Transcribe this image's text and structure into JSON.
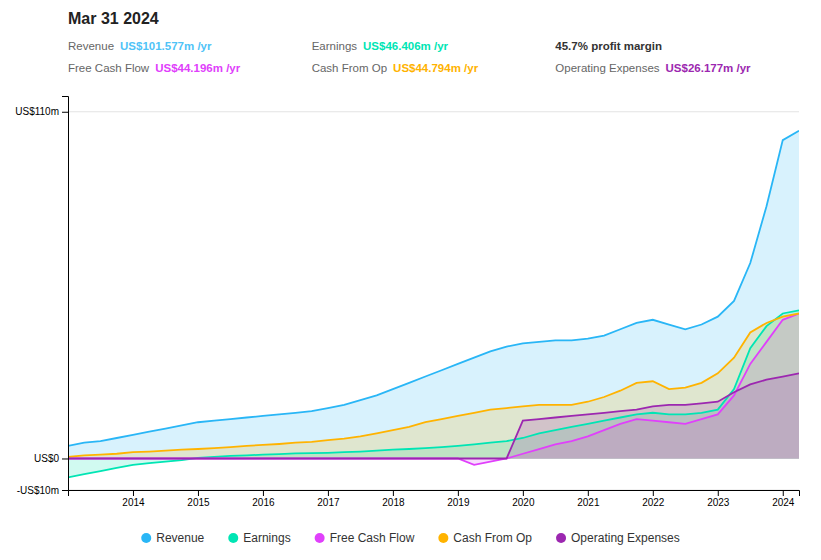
{
  "chart_data": {
    "type": "area",
    "title": "Mar 31 2024",
    "annotations": [
      {
        "label": "Revenue",
        "text": "US$101.577m /yr",
        "color": "#4fc3f7"
      },
      {
        "label": "Earnings",
        "text": "US$46.406m /yr",
        "color": "#00e5b4"
      },
      {
        "text": "45.7% profit margin"
      },
      {
        "label": "Free Cash Flow",
        "text": "US$44.196m /yr",
        "color": "#e040fb"
      },
      {
        "label": "Cash From Op",
        "text": "US$44.794m /yr",
        "color": "#ffb300"
      },
      {
        "label": "Operating Expenses",
        "text": "US$26.177m /yr",
        "color": "#9c27b0"
      }
    ],
    "x": [
      2013.0,
      2013.25,
      2013.5,
      2013.75,
      2014.0,
      2014.25,
      2014.5,
      2014.75,
      2015.0,
      2015.25,
      2015.5,
      2015.75,
      2016.0,
      2016.25,
      2016.5,
      2016.75,
      2017.0,
      2017.25,
      2017.5,
      2017.75,
      2018.0,
      2018.25,
      2018.5,
      2018.75,
      2019.0,
      2019.25,
      2019.5,
      2019.75,
      2020.0,
      2020.25,
      2020.5,
      2020.75,
      2021.0,
      2021.25,
      2021.5,
      2021.75,
      2022.0,
      2022.25,
      2022.5,
      2022.75,
      2023.0,
      2023.25,
      2023.5,
      2023.75,
      2024.0,
      2024.25
    ],
    "xlim": [
      2013.0,
      2024.25
    ],
    "xticks": [
      2014,
      2015,
      2016,
      2017,
      2018,
      2019,
      2020,
      2021,
      2022,
      2023,
      2024
    ],
    "ylim": [
      -10,
      115
    ],
    "yticks": [
      {
        "value": -10,
        "label": "-US$10m"
      },
      {
        "value": 0,
        "label": "US$0"
      },
      {
        "value": 110,
        "label": "US$110m"
      }
    ],
    "grid": true,
    "legend": "bottom",
    "series": [
      {
        "name": "Revenue",
        "color": "#29b6f6",
        "values": [
          4,
          5,
          5.5,
          6.5,
          7.5,
          8.5,
          9.5,
          10.5,
          11.5,
          12,
          12.5,
          13,
          13.5,
          14,
          14.5,
          15,
          16,
          17,
          18.5,
          20,
          22,
          24,
          26,
          28,
          30,
          32,
          34,
          35.5,
          36.5,
          37,
          37.5,
          37.5,
          38,
          39,
          41,
          43,
          44,
          42.5,
          41,
          42.5,
          45,
          50,
          62,
          80,
          101,
          104
        ]
      },
      {
        "name": "Earnings",
        "color": "#00e5b4",
        "values": [
          -6,
          -5,
          -4,
          -3,
          -2,
          -1.5,
          -1,
          -0.5,
          0.2,
          0.5,
          0.8,
          1,
          1.2,
          1.4,
          1.6,
          1.7,
          1.8,
          2,
          2.2,
          2.5,
          2.8,
          3,
          3.3,
          3.6,
          4,
          4.5,
          5,
          5.5,
          6.5,
          8,
          9,
          10,
          11,
          12,
          13,
          14,
          14.5,
          14,
          14,
          14.5,
          15.5,
          22,
          35,
          42,
          46,
          47
        ]
      },
      {
        "name": "Free Cash Flow",
        "color": "#e040fb",
        "values": [
          0,
          0,
          0,
          0,
          0,
          0,
          0,
          0,
          0,
          0,
          0,
          0,
          0,
          0,
          0,
          0,
          0,
          0,
          0,
          0,
          0,
          0,
          0,
          0,
          0,
          -2,
          -1,
          0,
          1.5,
          3,
          4.5,
          5.5,
          7,
          9,
          11,
          12.5,
          12,
          11.5,
          11,
          12.5,
          14,
          20,
          30,
          37,
          44,
          46
        ]
      },
      {
        "name": "Cash From Op",
        "color": "#ffb300",
        "values": [
          0.5,
          1,
          1.2,
          1.5,
          2,
          2.2,
          2.5,
          2.8,
          3,
          3.3,
          3.6,
          4,
          4.3,
          4.6,
          5,
          5.3,
          5.8,
          6.3,
          7,
          8,
          9,
          10,
          11.5,
          12.5,
          13.5,
          14.5,
          15.5,
          16,
          16.5,
          17,
          17,
          17,
          18,
          19.5,
          21.5,
          24,
          24.5,
          22,
          22.5,
          24,
          27,
          32,
          40,
          43,
          45,
          46
        ]
      },
      {
        "name": "Operating Expenses",
        "color": "#9c27b0",
        "values": [
          0,
          0,
          0,
          0,
          0,
          0,
          0,
          0,
          0,
          0,
          0,
          0,
          0,
          0,
          0,
          0,
          0,
          0,
          0,
          0,
          0,
          0,
          0,
          0,
          0,
          0,
          0,
          0,
          12,
          12.5,
          13,
          13.5,
          14,
          14.5,
          15,
          15.5,
          16.5,
          17,
          17,
          17.5,
          18,
          21,
          23.5,
          25,
          26,
          27
        ]
      }
    ]
  }
}
